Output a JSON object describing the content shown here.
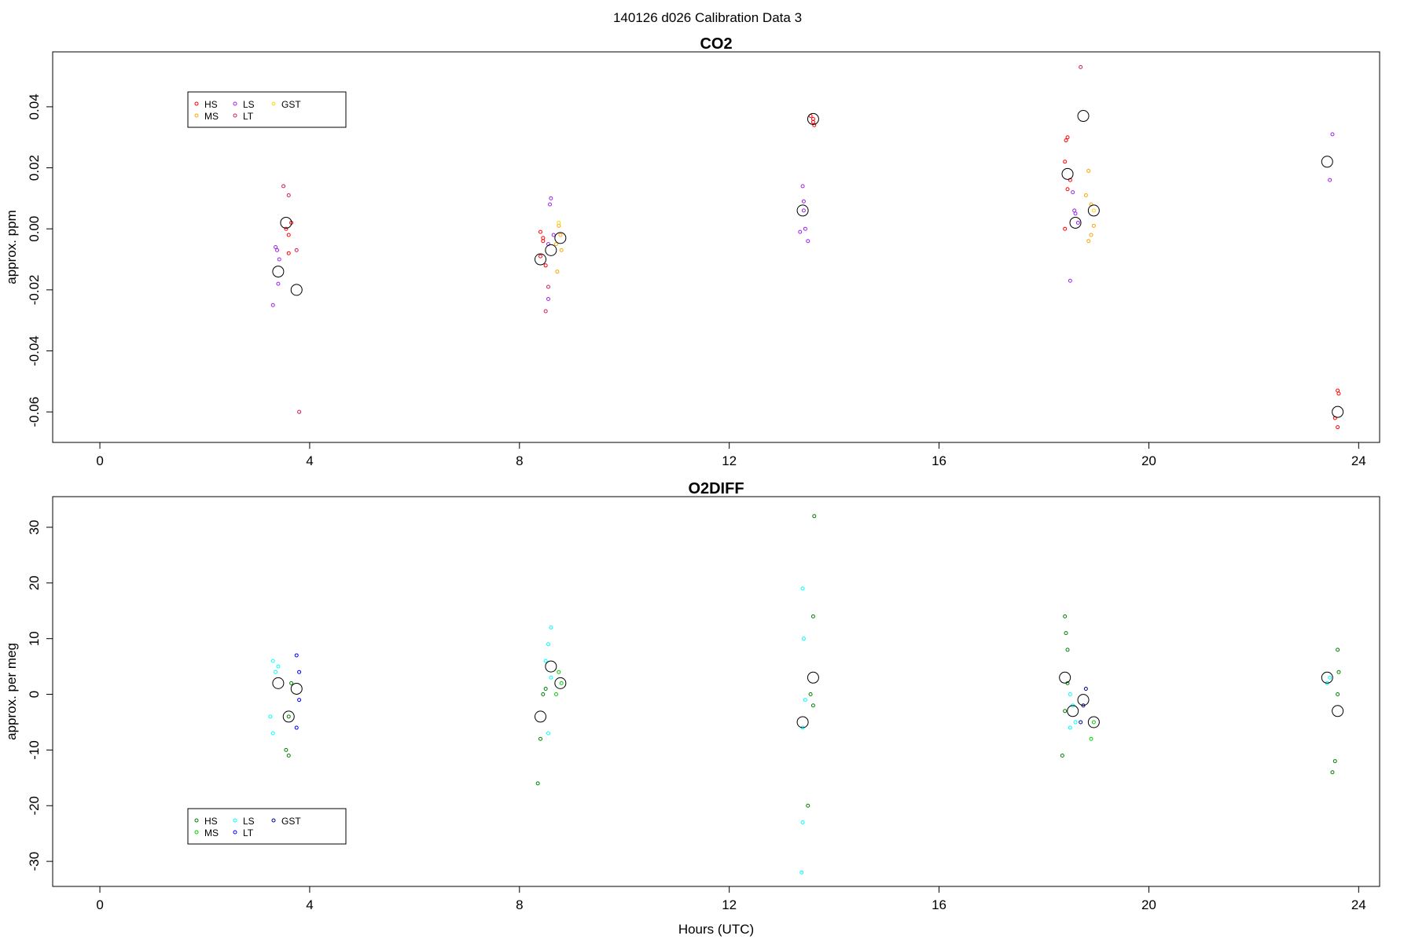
{
  "figure": {
    "title": "140126   d026   Calibration Data 3"
  },
  "chart_data": [
    {
      "type": "scatter",
      "title": "CO2",
      "xlabel": "",
      "ylabel": "approx. ppm",
      "xlim": [
        -0.9,
        24.4
      ],
      "ylim": [
        -0.07,
        0.058
      ],
      "xticks": [
        0,
        4,
        8,
        12,
        16,
        20,
        24
      ],
      "xtick_labels": [
        "0",
        "4",
        "8",
        "12",
        "16",
        "20",
        "24"
      ],
      "yticks": [
        -0.06,
        -0.04,
        -0.02,
        0.0,
        0.02,
        0.04
      ],
      "ytick_labels": [
        "-0.06",
        "-0.04",
        "-0.02",
        "0.00",
        "0.02",
        "0.04"
      ],
      "legend": {
        "placement": "top-left",
        "entries": [
          {
            "label": "HS",
            "color": "#ff0000"
          },
          {
            "label": "MS",
            "color": "#ffa500"
          },
          {
            "label": "LS",
            "color": "#a020f0"
          },
          {
            "label": "LT",
            "color": "#d02050"
          },
          {
            "label": "GST",
            "color": "#ffd700"
          }
        ]
      },
      "series": [
        {
          "name": "HS",
          "color": "#ff0000",
          "points": [
            [
              3.55,
              0.0
            ],
            [
              3.6,
              -0.002
            ],
            [
              3.65,
              0.002
            ],
            [
              3.6,
              -0.008
            ],
            [
              8.4,
              -0.009
            ],
            [
              8.45,
              -0.004
            ],
            [
              8.4,
              -0.001
            ],
            [
              8.5,
              -0.012
            ],
            [
              8.45,
              -0.003
            ],
            [
              13.6,
              0.036
            ],
            [
              13.62,
              0.034
            ],
            [
              13.55,
              0.037
            ],
            [
              13.6,
              0.035
            ],
            [
              18.4,
              0.022
            ],
            [
              18.45,
              0.03
            ],
            [
              18.5,
              0.016
            ],
            [
              18.4,
              0.0
            ],
            [
              18.45,
              0.013
            ],
            [
              18.42,
              0.029
            ],
            [
              23.6,
              -0.053
            ],
            [
              23.62,
              -0.054
            ],
            [
              23.55,
              -0.062
            ],
            [
              23.6,
              -0.065
            ]
          ]
        },
        {
          "name": "MS",
          "color": "#ffa500",
          "points": [
            [
              8.7,
              -0.005
            ],
            [
              8.75,
              0.001
            ],
            [
              8.8,
              -0.007
            ],
            [
              8.72,
              -0.014
            ],
            [
              8.78,
              -0.002
            ],
            [
              18.85,
              0.019
            ],
            [
              18.9,
              0.008
            ],
            [
              18.95,
              0.001
            ],
            [
              18.85,
              -0.004
            ],
            [
              18.9,
              -0.002
            ],
            [
              18.8,
              0.011
            ]
          ]
        },
        {
          "name": "LS",
          "color": "#a020f0",
          "points": [
            [
              3.35,
              -0.006
            ],
            [
              3.4,
              -0.018
            ],
            [
              3.3,
              -0.025
            ],
            [
              3.42,
              -0.01
            ],
            [
              3.38,
              -0.007
            ],
            [
              8.55,
              -0.005
            ],
            [
              8.6,
              0.01
            ],
            [
              8.55,
              -0.023
            ],
            [
              8.65,
              -0.002
            ],
            [
              8.58,
              0.008
            ],
            [
              13.4,
              0.014
            ],
            [
              13.42,
              0.009
            ],
            [
              13.45,
              0.0
            ],
            [
              13.5,
              -0.004
            ],
            [
              13.35,
              -0.001
            ],
            [
              13.42,
              0.006
            ],
            [
              18.55,
              0.012
            ],
            [
              18.6,
              0.005
            ],
            [
              18.5,
              -0.017
            ],
            [
              18.65,
              0.002
            ],
            [
              18.58,
              0.006
            ],
            [
              23.5,
              0.031
            ],
            [
              23.45,
              0.016
            ]
          ]
        },
        {
          "name": "LT",
          "color": "#d02050",
          "points": [
            [
              3.5,
              0.014
            ],
            [
              3.6,
              0.011
            ],
            [
              3.75,
              -0.007
            ],
            [
              3.8,
              -0.06
            ],
            [
              8.5,
              -0.027
            ],
            [
              8.55,
              -0.019
            ],
            [
              18.7,
              0.053
            ]
          ]
        },
        {
          "name": "GST",
          "color": "#ffd700",
          "points": [
            [
              8.75,
              0.002
            ],
            [
              18.95,
              0.006
            ]
          ]
        },
        {
          "name": "",
          "color": "#000000",
          "points": [
            [
              3.55,
              0.002
            ],
            [
              3.4,
              -0.014
            ],
            [
              3.75,
              -0.02
            ],
            [
              8.4,
              -0.01
            ],
            [
              8.6,
              -0.007
            ],
            [
              8.78,
              -0.003
            ],
            [
              13.6,
              0.036
            ],
            [
              13.4,
              0.006
            ],
            [
              18.45,
              0.018
            ],
            [
              18.6,
              0.002
            ],
            [
              18.75,
              0.037
            ],
            [
              18.95,
              0.006
            ],
            [
              23.4,
              0.022
            ],
            [
              23.6,
              -0.06
            ]
          ]
        }
      ]
    },
    {
      "type": "scatter",
      "title": "O2DIFF",
      "xlabel": "Hours (UTC)",
      "ylabel": "approx. per meg",
      "xlim": [
        -0.9,
        24.4
      ],
      "ylim": [
        -34.5,
        35.5
      ],
      "xticks": [
        0,
        4,
        8,
        12,
        16,
        20,
        24
      ],
      "xtick_labels": [
        "0",
        "4",
        "8",
        "12",
        "16",
        "20",
        "24"
      ],
      "yticks": [
        -30,
        -20,
        -10,
        0,
        10,
        20,
        30
      ],
      "ytick_labels": [
        "-30",
        "-20",
        "-10",
        "0",
        "10",
        "20",
        "30"
      ],
      "legend": {
        "placement": "bottom-left",
        "entries": [
          {
            "label": "HS",
            "color": "#008000"
          },
          {
            "label": "MS",
            "color": "#00d000"
          },
          {
            "label": "LS",
            "color": "#00ffff"
          },
          {
            "label": "LT",
            "color": "#0000ff"
          },
          {
            "label": "GST",
            "color": "#00008b"
          }
        ]
      },
      "series": [
        {
          "name": "HS",
          "color": "#008000",
          "points": [
            [
              3.55,
              -10
            ],
            [
              3.6,
              -11
            ],
            [
              3.65,
              2
            ],
            [
              3.6,
              -4
            ],
            [
              8.4,
              -8
            ],
            [
              8.35,
              -16
            ],
            [
              8.45,
              0
            ],
            [
              8.5,
              1
            ],
            [
              13.6,
              14
            ],
            [
              13.62,
              32
            ],
            [
              13.5,
              -20
            ],
            [
              13.6,
              -2
            ],
            [
              13.55,
              0
            ],
            [
              18.4,
              14
            ],
            [
              18.42,
              11
            ],
            [
              18.45,
              8
            ],
            [
              18.35,
              -11
            ],
            [
              18.4,
              -3
            ],
            [
              18.45,
              2
            ],
            [
              23.6,
              8
            ],
            [
              23.62,
              4
            ],
            [
              23.55,
              -12
            ],
            [
              23.5,
              -14
            ],
            [
              23.6,
              0
            ]
          ]
        },
        {
          "name": "MS",
          "color": "#00d000",
          "points": [
            [
              8.75,
              4
            ],
            [
              8.8,
              2
            ],
            [
              8.7,
              0
            ],
            [
              18.95,
              -5
            ],
            [
              18.9,
              -8
            ]
          ]
        },
        {
          "name": "LS",
          "color": "#00ffff",
          "points": [
            [
              3.3,
              6
            ],
            [
              3.35,
              4
            ],
            [
              3.4,
              5
            ],
            [
              3.25,
              -4
            ],
            [
              3.3,
              -7
            ],
            [
              8.6,
              12
            ],
            [
              8.55,
              9
            ],
            [
              8.5,
              6
            ],
            [
              8.6,
              3
            ],
            [
              8.55,
              -7
            ],
            [
              13.4,
              19
            ],
            [
              13.42,
              10
            ],
            [
              13.4,
              -23
            ],
            [
              13.38,
              -32
            ],
            [
              13.45,
              -1
            ],
            [
              13.4,
              -6
            ],
            [
              18.5,
              0
            ],
            [
              18.55,
              -2
            ],
            [
              18.6,
              -5
            ],
            [
              18.5,
              -6
            ],
            [
              23.45,
              3
            ],
            [
              23.4,
              2
            ]
          ]
        },
        {
          "name": "LT",
          "color": "#0000ff",
          "points": [
            [
              3.75,
              7
            ],
            [
              3.8,
              4
            ],
            [
              3.75,
              -6
            ],
            [
              3.8,
              -1
            ]
          ]
        },
        {
          "name": "GST",
          "color": "#00008b",
          "points": [
            [
              18.8,
              1
            ],
            [
              18.75,
              -2
            ],
            [
              18.7,
              -5
            ]
          ]
        },
        {
          "name": "",
          "color": "#000000",
          "points": [
            [
              3.4,
              2
            ],
            [
              3.6,
              -4
            ],
            [
              3.75,
              1
            ],
            [
              8.4,
              -4
            ],
            [
              8.6,
              5
            ],
            [
              8.78,
              2
            ],
            [
              13.6,
              3
            ],
            [
              13.4,
              -5
            ],
            [
              18.4,
              3
            ],
            [
              18.55,
              -3
            ],
            [
              18.75,
              -1
            ],
            [
              18.95,
              -5
            ],
            [
              23.4,
              3
            ],
            [
              23.6,
              -3
            ]
          ]
        }
      ]
    }
  ]
}
